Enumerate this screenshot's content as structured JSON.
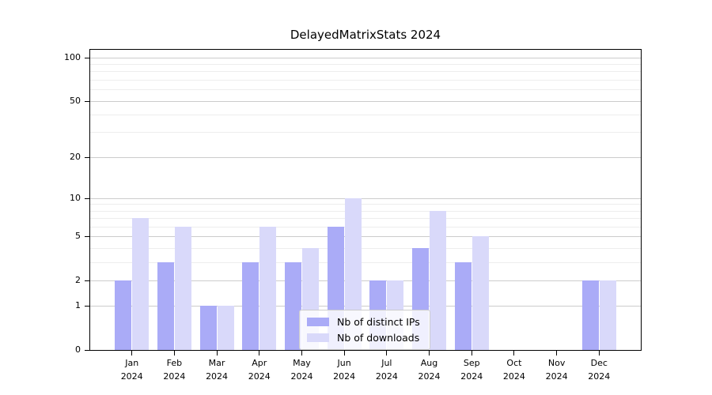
{
  "chart_data": {
    "type": "bar",
    "title": "DelayedMatrixStats 2024",
    "categories": [
      {
        "month": "Jan",
        "year": "2024"
      },
      {
        "month": "Feb",
        "year": "2024"
      },
      {
        "month": "Mar",
        "year": "2024"
      },
      {
        "month": "Apr",
        "year": "2024"
      },
      {
        "month": "May",
        "year": "2024"
      },
      {
        "month": "Jun",
        "year": "2024"
      },
      {
        "month": "Jul",
        "year": "2024"
      },
      {
        "month": "Aug",
        "year": "2024"
      },
      {
        "month": "Sep",
        "year": "2024"
      },
      {
        "month": "Oct",
        "year": "2024"
      },
      {
        "month": "Nov",
        "year": "2024"
      },
      {
        "month": "Dec",
        "year": "2024"
      }
    ],
    "series": [
      {
        "name": "Nb of distinct IPs",
        "color": "#aaabf7",
        "values": [
          2,
          3,
          1,
          3,
          3,
          6,
          2,
          4,
          3,
          0,
          0,
          2
        ]
      },
      {
        "name": "Nb of downloads",
        "color": "#d9d9fa",
        "values": [
          7,
          6,
          1,
          6,
          4,
          10,
          2,
          8,
          5,
          0,
          0,
          2
        ]
      }
    ],
    "xlabel": "",
    "ylabel": "",
    "yscale": "log1p",
    "ylim": [
      0,
      113
    ],
    "yticks": [
      0,
      1,
      2,
      5,
      10,
      20,
      50,
      100
    ],
    "minor_yticks": [
      3,
      4,
      6,
      7,
      8,
      9,
      30,
      40,
      60,
      70,
      80,
      90
    ],
    "grid": true,
    "legend_position": "lower-center"
  }
}
